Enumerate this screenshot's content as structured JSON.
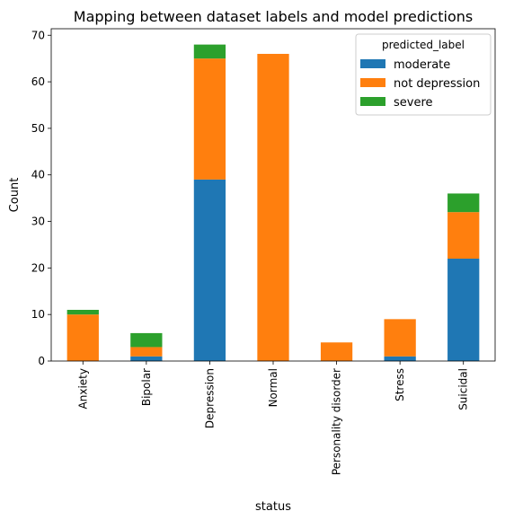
{
  "chart_data": {
    "type": "bar",
    "stacked": true,
    "title": "Mapping between dataset labels and model predictions",
    "xlabel": "status",
    "ylabel": "Count",
    "ylim": [
      0,
      71.4
    ],
    "yticks": [
      0,
      10,
      20,
      30,
      40,
      50,
      60,
      70
    ],
    "categories": [
      "Anxiety",
      "Bipolar",
      "Depression",
      "Normal",
      "Personality disorder",
      "Stress",
      "Suicidal"
    ],
    "series": [
      {
        "name": "moderate",
        "color": "#1f77b4",
        "values": [
          0,
          1,
          39,
          0,
          0,
          1,
          22
        ]
      },
      {
        "name": "not depression",
        "color": "#ff7f0e",
        "values": [
          10,
          2,
          26,
          66,
          4,
          8,
          10
        ]
      },
      {
        "name": "severe",
        "color": "#2ca02c",
        "values": [
          1,
          3,
          3,
          0,
          0,
          0,
          4
        ]
      }
    ],
    "legend": {
      "title": "predicted_label",
      "placement": "top-right"
    },
    "grid": false
  }
}
